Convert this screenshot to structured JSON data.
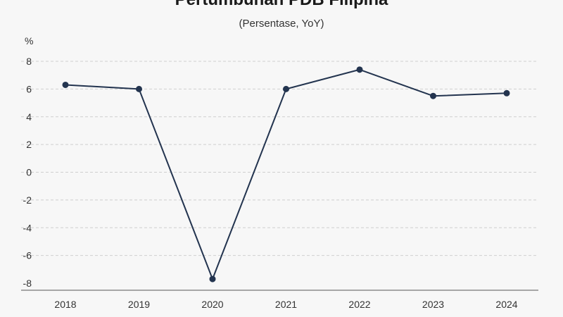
{
  "title": "Pertumbuhan PDB Filipina",
  "subtitle": "(Persentase, YoY)",
  "chart_data": {
    "type": "line",
    "title": "Pertumbuhan PDB Filipina",
    "subtitle": "(Persentase, YoY)",
    "ylabel": "%",
    "xlabel": "",
    "categories": [
      "2018",
      "2019",
      "2020",
      "2021",
      "2022",
      "2023",
      "2024"
    ],
    "series": [
      {
        "values": [
          6.3,
          6.0,
          -7.7,
          6.0,
          7.4,
          5.5,
          5.7
        ]
      }
    ],
    "ylim": [
      -8,
      8
    ],
    "yticks": [
      "8",
      "6",
      "4",
      "2",
      "0",
      "-2",
      "-4",
      "-6",
      "-8"
    ],
    "grid": true,
    "line_color": "#23344f",
    "grid_color": "#cfcfcf"
  }
}
